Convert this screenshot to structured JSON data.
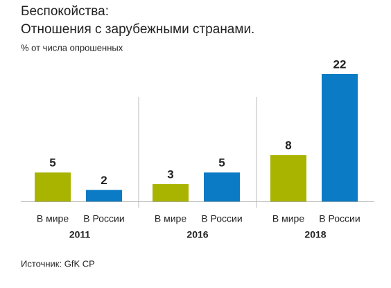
{
  "chart_data": {
    "type": "bar",
    "title": "Беспокойства:",
    "subtitle": "Отношения с зарубежными странами.",
    "unit_note": "% от числа опрошенных",
    "source": "Источник: GfK CP",
    "categories": [
      "2011",
      "2016",
      "2018"
    ],
    "series": [
      {
        "name": "В мире",
        "color": "#a8b400",
        "values": [
          5,
          3,
          8
        ]
      },
      {
        "name": "В России",
        "color": "#0a7bc4",
        "values": [
          2,
          5,
          22
        ]
      }
    ]
  }
}
